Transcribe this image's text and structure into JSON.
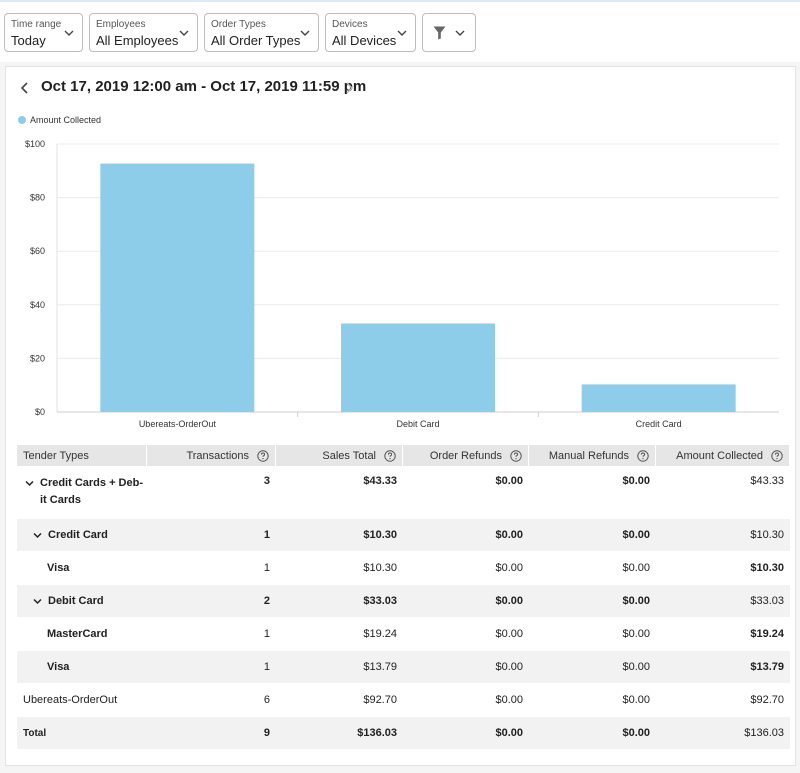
{
  "filters": [
    {
      "label": "Time range",
      "value": "Today"
    },
    {
      "label": "Employees",
      "value": "All Employees"
    },
    {
      "label": "Order Types",
      "value": "All Order Types"
    },
    {
      "label": "Devices",
      "value": "All Devices"
    }
  ],
  "more_filters_icon": "funnel-icon",
  "date_range": "Oct 17, 2019 12:00 am - Oct 17, 2019 11:59 pm",
  "legend": {
    "label": "Amount Collected",
    "color": "#8dcde9"
  },
  "chart_data": {
    "type": "bar",
    "categories": [
      "Ubereats-OrderOut",
      "Debit Card",
      "Credit Card"
    ],
    "series": [
      {
        "name": "Amount Collected",
        "values": [
          92.7,
          33.03,
          10.3
        ],
        "color": "#8dcde9"
      }
    ],
    "ylim": [
      0,
      100
    ],
    "yticks": [
      "$0",
      "$20",
      "$40",
      "$60",
      "$80",
      "$100"
    ],
    "ytick_values": [
      0,
      20,
      40,
      60,
      80,
      100
    ],
    "grid": "horizontal"
  },
  "table": {
    "headers": [
      "Tender Types",
      "Transactions",
      "Sales Total",
      "Order Refunds",
      "Manual Refunds",
      "Amount Collected"
    ],
    "rows": [
      {
        "name": "Credit Cards + Deb-it Cards",
        "name_line1": "Credit Cards + Deb-",
        "name_line2": "it Cards",
        "transactions": "3",
        "sales_total": "$43.33",
        "order_refunds": "$0.00",
        "manual_refunds": "$0.00",
        "amount_collected": "$43.33"
      },
      {
        "name": "Credit Card",
        "transactions": "1",
        "sales_total": "$10.30",
        "order_refunds": "$0.00",
        "manual_refunds": "$0.00",
        "amount_collected": "$10.30"
      },
      {
        "name": "Visa",
        "transactions": "1",
        "sales_total": "$10.30",
        "order_refunds": "$0.00",
        "manual_refunds": "$0.00",
        "amount_collected": "$10.30"
      },
      {
        "name": "Debit Card",
        "transactions": "2",
        "sales_total": "$33.03",
        "order_refunds": "$0.00",
        "manual_refunds": "$0.00",
        "amount_collected": "$33.03"
      },
      {
        "name": "MasterCard",
        "transactions": "1",
        "sales_total": "$19.24",
        "order_refunds": "$0.00",
        "manual_refunds": "$0.00",
        "amount_collected": "$19.24"
      },
      {
        "name": "Visa",
        "transactions": "1",
        "sales_total": "$13.79",
        "order_refunds": "$0.00",
        "manual_refunds": "$0.00",
        "amount_collected": "$13.79"
      },
      {
        "name": "Ubereats-OrderOut",
        "transactions": "6",
        "sales_total": "$92.70",
        "order_refunds": "$0.00",
        "manual_refunds": "$0.00",
        "amount_collected": "$92.70"
      },
      {
        "name": "Total",
        "transactions": "9",
        "sales_total": "$136.03",
        "order_refunds": "$0.00",
        "manual_refunds": "$0.00",
        "amount_collected": "$136.03"
      }
    ]
  }
}
